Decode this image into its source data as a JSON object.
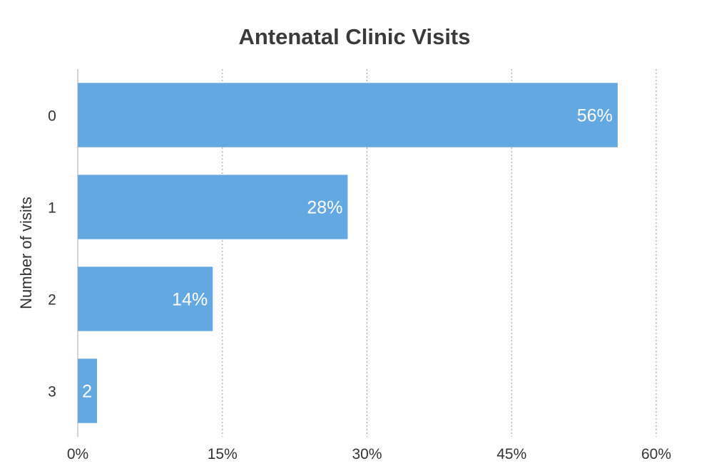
{
  "chart_data": {
    "type": "bar",
    "orientation": "horizontal",
    "title": "Antenatal Clinic Visits",
    "xlabel": "",
    "ylabel": "Number of visits",
    "categories": [
      "0",
      "1",
      "2",
      "3"
    ],
    "values": [
      56,
      28,
      14,
      2
    ],
    "data_labels": [
      "56%",
      "28%",
      "14%",
      "2"
    ],
    "xlim": [
      0,
      60
    ],
    "x_ticks": [
      0,
      15,
      30,
      45,
      60
    ],
    "x_tick_labels": [
      "0%",
      "15%",
      "30%",
      "45%",
      "60%"
    ],
    "grid": true,
    "grid_style": "dotted vertical",
    "bar_color": "#64a8e2",
    "label_color": "#ffffff",
    "axis_color": "#aaaaaa"
  }
}
